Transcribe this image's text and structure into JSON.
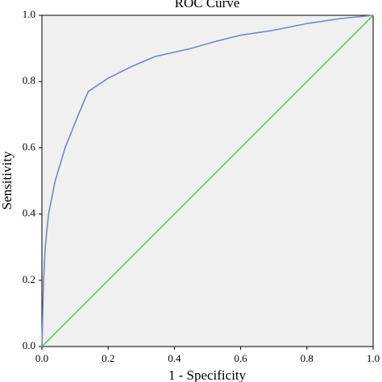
{
  "chart_data": {
    "type": "line",
    "title": "ROC Curve",
    "x_label": "1 - Specificity",
    "y_label": "Sensitivity",
    "series": [
      {
        "color": "#6f87c6",
        "x": [
          0,
          0.005,
          0.01,
          0.02,
          0.04,
          0.07,
          0.11,
          0.14,
          0.2,
          0.27,
          0.34,
          0.45,
          0.52,
          0.6,
          0.7,
          0.8,
          0.9,
          1.0
        ],
        "values": [
          0,
          0.2,
          0.3,
          0.4,
          0.5,
          0.6,
          0.7,
          0.77,
          0.81,
          0.845,
          0.875,
          0.9,
          0.92,
          0.94,
          0.955,
          0.975,
          0.99,
          1.0
        ]
      },
      {
        "color": "#5ecb5e",
        "x": [
          0,
          1.0
        ],
        "values": [
          0,
          1.0
        ]
      }
    ],
    "xlim": [
      0,
      1
    ],
    "ylim": [
      0,
      1
    ],
    "xticks": [
      {
        "value": 0,
        "label": "0.0"
      },
      0.2,
      0.4,
      0.6,
      0.8,
      {
        "value": 1,
        "label": "1.0"
      }
    ],
    "yticks": [
      {
        "value": 0,
        "label": "0.0"
      },
      0.2,
      0.4,
      0.6,
      0.8,
      {
        "value": 1,
        "label": "1.0"
      }
    ],
    "background": "#f0f0f0"
  }
}
